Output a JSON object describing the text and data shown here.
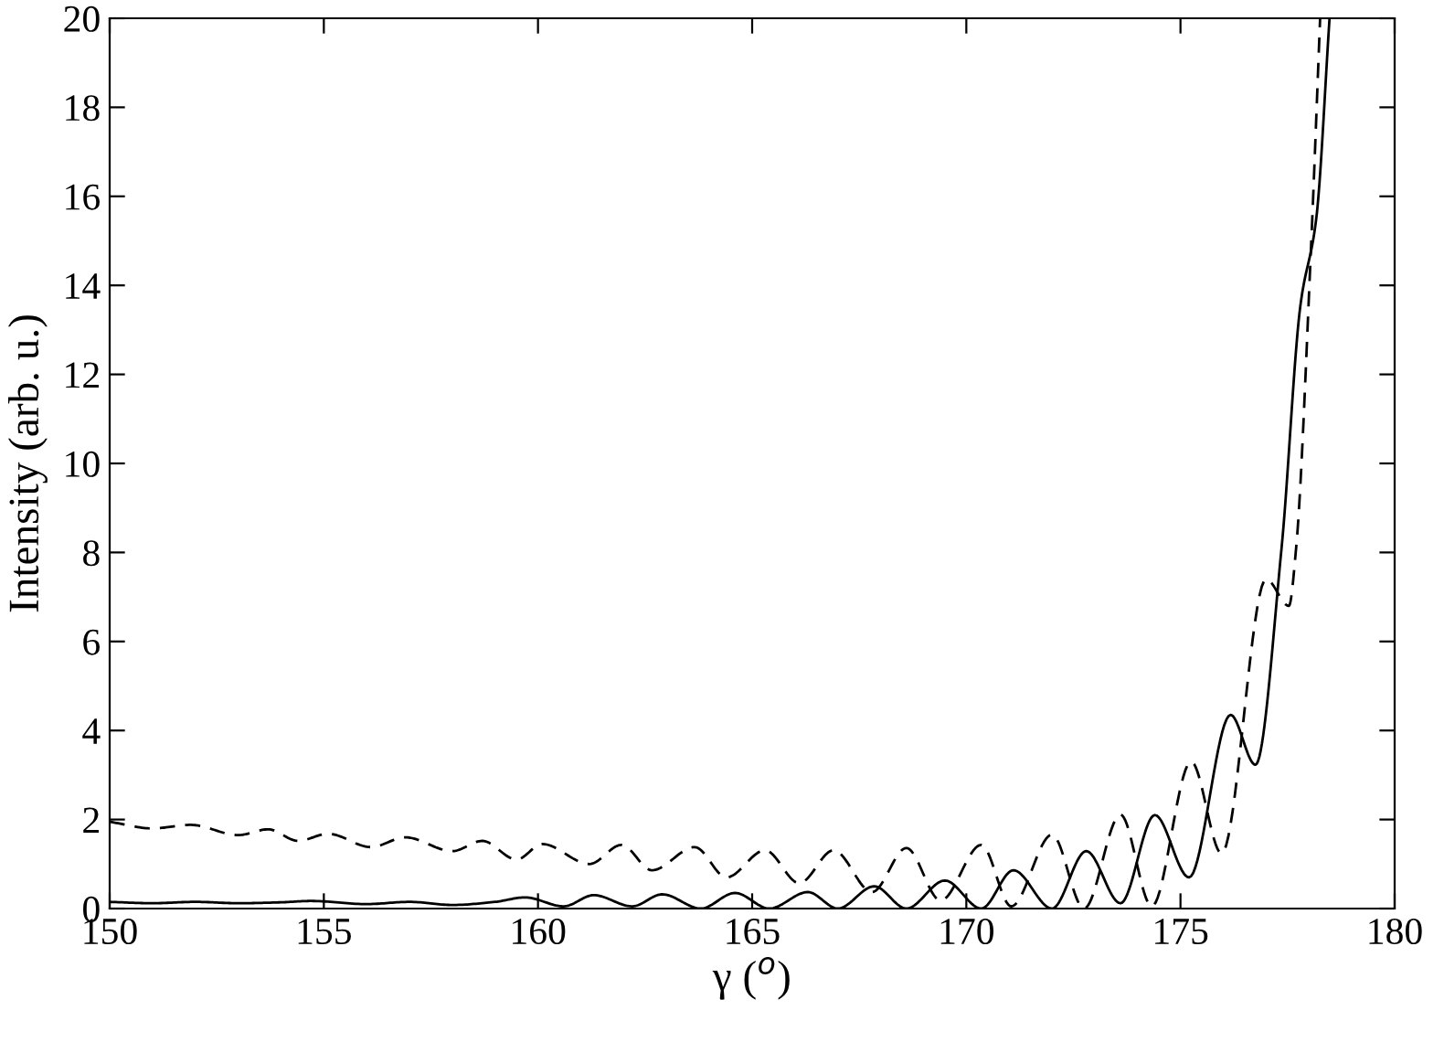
{
  "chart_data": {
    "type": "line",
    "xlabel": "γ ($^{o}$)",
    "ylabel": "Intensity (arb. u.)",
    "xlim": [
      150,
      180
    ],
    "ylim": [
      0,
      20
    ],
    "xticks": [
      150,
      155,
      160,
      165,
      170,
      175,
      180
    ],
    "yticks": [
      0,
      2,
      4,
      6,
      8,
      10,
      12,
      14,
      16,
      18,
      20
    ],
    "grid": false,
    "legend": false,
    "marker": "none",
    "series": [
      {
        "color": "#000000",
        "line_style": "solid",
        "x": [
          150,
          151,
          152,
          153,
          154,
          154.7,
          156,
          157,
          158,
          159,
          159.7,
          160.6,
          161.3,
          162.2,
          162.9,
          163.8,
          164.6,
          165.4,
          166.3,
          167.0,
          167.85,
          168.6,
          169.5,
          170.35,
          171.1,
          172.0,
          172.8,
          173.6,
          174.4,
          175.2,
          176.17,
          176.75,
          177.36,
          177.8,
          178.17,
          178.48
        ],
        "values": [
          0.15,
          0.12,
          0.15,
          0.12,
          0.14,
          0.17,
          0.1,
          0.15,
          0.08,
          0.15,
          0.25,
          0.05,
          0.3,
          0.05,
          0.32,
          0.0,
          0.35,
          0.0,
          0.37,
          0.0,
          0.5,
          0.0,
          0.63,
          0.0,
          0.86,
          0.0,
          1.29,
          0.12,
          2.1,
          0.7,
          4.35,
          3.23,
          8.1,
          13.55,
          15.5,
          20
        ]
      },
      {
        "color": "#000000",
        "line_style": "dashed",
        "x": [
          150,
          151,
          151.9,
          153.0,
          153.7,
          154.4,
          155.1,
          156.1,
          156.9,
          158.0,
          158.7,
          159.5,
          160.1,
          161.2,
          161.95,
          162.66,
          163.66,
          164.4,
          165.3,
          166.1,
          166.9,
          167.8,
          168.6,
          169.4,
          170.35,
          171.05,
          172.0,
          172.75,
          173.6,
          174.33,
          175.25,
          175.96,
          177.0,
          177.53,
          177.7,
          178.05,
          178.26
        ],
        "values": [
          1.95,
          1.8,
          1.88,
          1.65,
          1.78,
          1.52,
          1.68,
          1.38,
          1.6,
          1.29,
          1.52,
          1.1,
          1.45,
          1.0,
          1.43,
          0.86,
          1.38,
          0.7,
          1.31,
          0.57,
          1.31,
          0.37,
          1.36,
          0.18,
          1.43,
          0.05,
          1.66,
          0.0,
          2.11,
          0.05,
          3.3,
          1.24,
          7.4,
          6.8,
          8.1,
          14.9,
          20
        ]
      }
    ]
  }
}
